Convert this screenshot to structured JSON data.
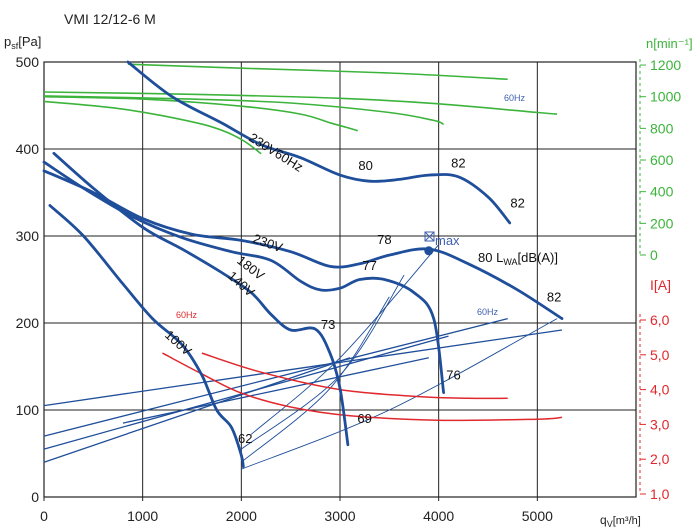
{
  "chart_data": {
    "type": "line",
    "title": "VMI 12/12-6 M",
    "xlabel": {
      "main": "q",
      "sub": "V",
      "rest": "[m³/h]"
    },
    "ylabel": {
      "main": "p",
      "sub": "sf",
      "rest": "[Pa]"
    },
    "xlim": [
      0,
      6000
    ],
    "ylim": [
      0,
      500
    ],
    "grid": true,
    "x_ticks": [
      "0",
      "1000",
      "2000",
      "3000",
      "4000",
      "5000"
    ],
    "y_ticks": [
      "0",
      "100",
      "200",
      "300",
      "400",
      "500"
    ],
    "rpm_axis": {
      "label": "n[min⁻¹]",
      "ticks": [
        "0",
        "200",
        "400",
        "600",
        "800",
        "1000",
        "1200"
      ],
      "color": "#3cb43c"
    },
    "current_axis": {
      "label": "I[A]",
      "ticks": [
        "1,0",
        "2,0",
        "3,0",
        "4,0",
        "5,0",
        "6,0"
      ],
      "color": "#e0282d"
    },
    "pressure_curves": [
      {
        "label": "230V60Hz",
        "points": [
          [
            850,
            500
          ],
          [
            1300,
            460
          ],
          [
            1800,
            430
          ],
          [
            2200,
            405
          ],
          [
            2600,
            390
          ],
          [
            3000,
            370
          ],
          [
            3300,
            363
          ],
          [
            3600,
            365
          ],
          [
            3900,
            370
          ],
          [
            4200,
            368
          ],
          [
            4500,
            345
          ],
          [
            4720,
            315
          ]
        ]
      },
      {
        "label": "230V",
        "points": [
          [
            0,
            375
          ],
          [
            500,
            350
          ],
          [
            1000,
            320
          ],
          [
            1500,
            302
          ],
          [
            2000,
            295
          ],
          [
            2500,
            282
          ],
          [
            2900,
            265
          ],
          [
            3200,
            268
          ],
          [
            3500,
            278
          ],
          [
            3900,
            285
          ],
          [
            4300,
            268
          ],
          [
            4800,
            238
          ],
          [
            5250,
            205
          ]
        ]
      },
      {
        "label": "180V",
        "points": [
          [
            0,
            385
          ],
          [
            400,
            355
          ],
          [
            900,
            322
          ],
          [
            1400,
            298
          ],
          [
            1900,
            282
          ],
          [
            2300,
            272
          ],
          [
            2600,
            248
          ],
          [
            2800,
            238
          ],
          [
            3000,
            240
          ],
          [
            3200,
            250
          ],
          [
            3450,
            250
          ],
          [
            3750,
            235
          ],
          [
            3950,
            205
          ],
          [
            4050,
            120
          ]
        ]
      },
      {
        "label": "140V",
        "points": [
          [
            100,
            395
          ],
          [
            500,
            355
          ],
          [
            1000,
            310
          ],
          [
            1400,
            285
          ],
          [
            1800,
            258
          ],
          [
            2100,
            235
          ],
          [
            2300,
            210
          ],
          [
            2500,
            192
          ],
          [
            2750,
            193
          ],
          [
            2900,
            165
          ],
          [
            3000,
            125
          ],
          [
            3080,
            60
          ]
        ]
      },
      {
        "label": "100V",
        "points": [
          [
            60,
            335
          ],
          [
            400,
            300
          ],
          [
            800,
            245
          ],
          [
            1100,
            205
          ],
          [
            1400,
            175
          ],
          [
            1600,
            140
          ],
          [
            1750,
            100
          ],
          [
            1900,
            80
          ],
          [
            2000,
            48
          ],
          [
            2020,
            35
          ]
        ]
      }
    ],
    "rpm_curves": [
      {
        "points": [
          [
            850,
            1205
          ],
          [
            2000,
            1180
          ],
          [
            3500,
            1150
          ],
          [
            4700,
            1110
          ]
        ]
      },
      {
        "points": [
          [
            0,
            1030
          ],
          [
            1500,
            1015
          ],
          [
            3000,
            990
          ],
          [
            4000,
            955
          ],
          [
            5000,
            900
          ],
          [
            5200,
            890
          ]
        ]
      },
      {
        "points": [
          [
            0,
            1005
          ],
          [
            1500,
            985
          ],
          [
            2500,
            960
          ],
          [
            3500,
            900
          ],
          [
            3950,
            850
          ],
          [
            4050,
            825
          ]
        ]
      },
      {
        "points": [
          [
            0,
            1000
          ],
          [
            1000,
            985
          ],
          [
            2000,
            940
          ],
          [
            2600,
            890
          ],
          [
            2900,
            835
          ],
          [
            3100,
            800
          ],
          [
            3180,
            785
          ]
        ]
      },
      {
        "points": [
          [
            0,
            970
          ],
          [
            700,
            930
          ],
          [
            1200,
            880
          ],
          [
            1700,
            810
          ],
          [
            2000,
            730
          ],
          [
            2200,
            640
          ]
        ]
      }
    ],
    "current_curves": [
      {
        "label": "60Hz",
        "points": [
          [
            1600,
            5.05
          ],
          [
            2200,
            4.5
          ],
          [
            3000,
            4.0
          ],
          [
            3800,
            3.8
          ],
          [
            4300,
            3.75
          ],
          [
            4700,
            3.75
          ]
        ]
      },
      {
        "points": [
          [
            1200,
            5.05
          ],
          [
            1600,
            4.45
          ],
          [
            2000,
            3.9
          ],
          [
            2500,
            3.5
          ],
          [
            3100,
            3.25
          ],
          [
            4000,
            3.12
          ],
          [
            5000,
            3.15
          ],
          [
            5250,
            3.2
          ]
        ]
      }
    ],
    "blue_lines": [
      {
        "label": "60Hz",
        "points": [
          [
            0,
            105
          ],
          [
            5250,
            192
          ]
        ]
      },
      {
        "points": [
          [
            0,
            70
          ],
          [
            4700,
            205
          ]
        ]
      },
      {
        "points": [
          [
            0,
            55
          ],
          [
            4100,
            185
          ]
        ]
      },
      {
        "points": [
          [
            0,
            40
          ],
          [
            3100,
            160
          ]
        ]
      },
      {
        "points": [
          [
            800,
            85
          ],
          [
            3900,
            160
          ]
        ]
      }
    ],
    "parabolas": [
      {
        "points": [
          [
            2100,
            72
          ],
          [
            3000,
            160
          ],
          [
            4000,
            290
          ]
        ]
      },
      {
        "points": [
          [
            2000,
            55
          ],
          [
            3000,
            140
          ],
          [
            3650,
            255
          ]
        ]
      },
      {
        "points": [
          [
            2000,
            40
          ],
          [
            2900,
            125
          ],
          [
            3500,
            230
          ]
        ]
      },
      {
        "points": [
          [
            2000,
            32
          ],
          [
            3500,
            100
          ],
          [
            5200,
            205
          ]
        ]
      }
    ],
    "point_labels": [
      {
        "text": "80",
        "x": 3260,
        "y": 376
      },
      {
        "text": "82",
        "x": 4200,
        "y": 379
      },
      {
        "text": "82",
        "x": 4800,
        "y": 333
      },
      {
        "text": "78",
        "x": 3450,
        "y": 291
      },
      {
        "text": "77",
        "x": 3300,
        "y": 261
      },
      {
        "text": "73",
        "x": 2880,
        "y": 193
      },
      {
        "text": "62",
        "x": 2040,
        "y": 62
      },
      {
        "text": "69",
        "x": 3250,
        "y": 85
      },
      {
        "text": "76",
        "x": 4150,
        "y": 135
      },
      {
        "text": "82",
        "x": 5170,
        "y": 225
      }
    ],
    "max_label": "max",
    "max_point": {
      "x": 3900,
      "y": 283
    },
    "lwa_label": {
      "main": "80 L",
      "sub": "WA",
      "rest": "[dB(A)]"
    },
    "colors": {
      "pressure": "#1f4e9a",
      "thin": "#1f4e9a",
      "rpm": "#3cb43c",
      "current": "#e0282d",
      "label_blue": "#3f5fb0"
    }
  }
}
